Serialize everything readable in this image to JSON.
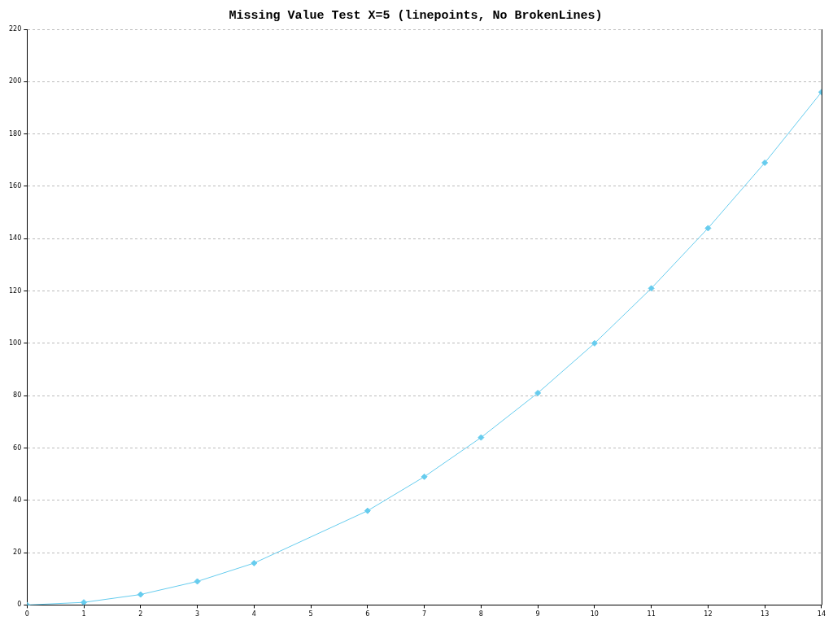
{
  "chart_data": {
    "type": "line",
    "title": "Missing Value Test X=5 (linepoints, No BrokenLines)",
    "x": [
      0,
      1,
      2,
      3,
      4,
      6,
      7,
      8,
      9,
      10,
      11,
      12,
      13,
      14
    ],
    "series": [
      {
        "color": "#66ccee",
        "values": [
          0,
          1,
          4,
          9,
          16,
          36,
          49,
          64,
          81,
          100,
          121,
          144,
          169,
          196
        ]
      }
    ],
    "xlim": [
      0,
      14
    ],
    "xticks": [
      0,
      1,
      2,
      3,
      4,
      5,
      6,
      7,
      8,
      9,
      10,
      11,
      12,
      13,
      14
    ],
    "ylim": [
      0,
      220
    ],
    "yticks": [
      0,
      20,
      40,
      60,
      80,
      100,
      120,
      140,
      160,
      180,
      200,
      220
    ],
    "grid": "y",
    "legend": false,
    "marker": "diamond",
    "line_style": "solid"
  }
}
